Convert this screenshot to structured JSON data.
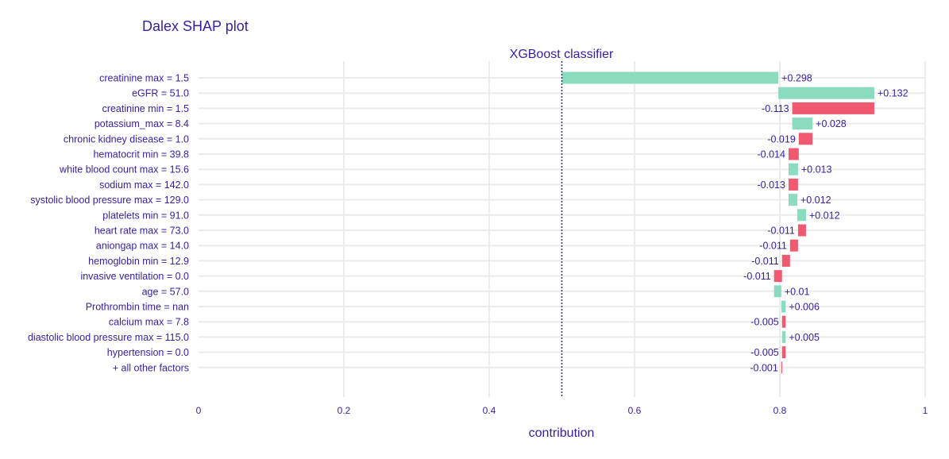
{
  "chart_data": {
    "type": "bar",
    "orientation": "horizontal",
    "title": "Dalex SHAP plot",
    "subtitle": "XGBoost classifier",
    "xlabel": "contribution",
    "ylabel": "",
    "xlim": [
      0,
      1
    ],
    "x_ticks": [
      0,
      0.2,
      0.4,
      0.6,
      0.8,
      1
    ],
    "x_tick_labels": [
      "0",
      "0.2",
      "0.4",
      "0.6",
      "0.8",
      "1"
    ],
    "baseline": 0.5,
    "grid": true,
    "legend": "none",
    "colors": {
      "positive": "#8bdcbe",
      "negative": "#f05a71",
      "text": "#371ea3",
      "grid": "#ebebeb",
      "baseline": "#371ea3"
    },
    "categories": [
      "creatinine max = 1.5",
      "eGFR = 51.0",
      "creatinine min = 1.5",
      "potassium_max = 8.4",
      "chronic kidney disease = 1.0",
      "hematocrit min = 39.8",
      "white blood count max = 15.6",
      "sodium max = 142.0",
      "systolic blood pressure max = 129.0",
      "platelets min = 91.0",
      "heart rate max = 73.0",
      "aniongap max = 14.0",
      "hemoglobin min = 12.9",
      "invasive ventilation = 0.0",
      "age = 57.0",
      "Prothrombin time = nan",
      "calcium max = 7.8",
      "diastolic blood pressure max = 115.0",
      "hypertension = 0.0",
      "+ all other factors"
    ],
    "values": [
      0.298,
      0.132,
      -0.113,
      0.028,
      -0.019,
      -0.014,
      0.013,
      -0.013,
      0.012,
      0.012,
      -0.011,
      -0.011,
      -0.011,
      -0.011,
      0.01,
      0.006,
      -0.005,
      0.005,
      -0.005,
      -0.001
    ],
    "data_labels": [
      "+0.298",
      "+0.132",
      "-0.113",
      "+0.028",
      "-0.019",
      "-0.014",
      "+0.013",
      "-0.013",
      "+0.012",
      "+0.012",
      "-0.011",
      "-0.011",
      "-0.011",
      "-0.011",
      "+0.01",
      "+0.006",
      "-0.005",
      "+0.005",
      "-0.005",
      "-0.001"
    ]
  }
}
